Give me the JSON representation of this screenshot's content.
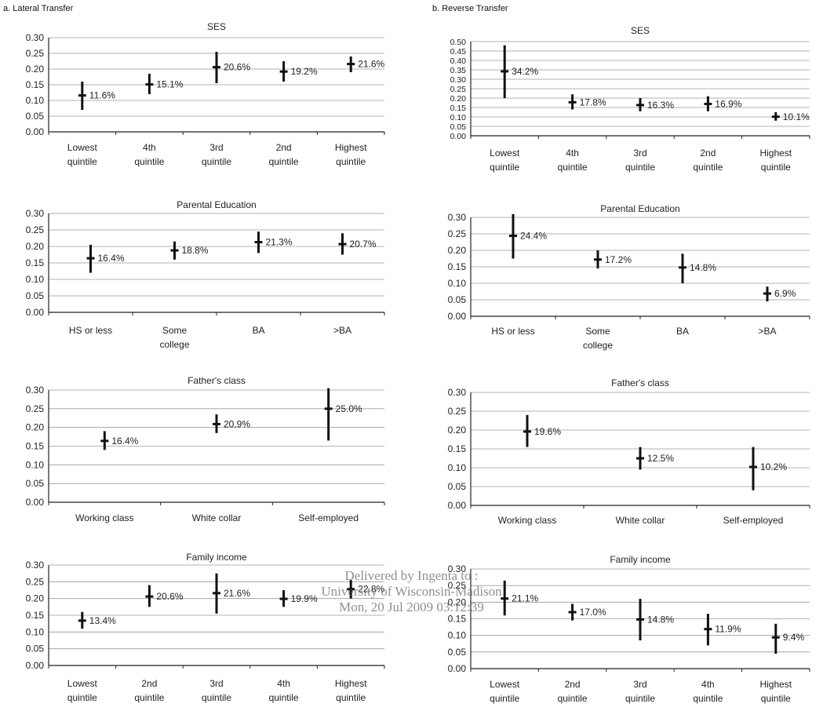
{
  "columns": {
    "left_title": "a. Lateral Transfer",
    "right_title": "b. Reverse Transfer"
  },
  "watermark": {
    "line1": "Delivered by Ingenta to :",
    "line2": "University of Wisconsin-Madison",
    "line3": "Mon, 20 Jul 2009 03:12:39"
  },
  "chart_data": [
    {
      "type": "scatter",
      "panel": "a. Lateral Transfer",
      "title": "SES",
      "ylim": [
        0,
        0.3
      ],
      "yticks": [
        "0.00",
        "0.05",
        "0.10",
        "0.15",
        "0.20",
        "0.25",
        "0.30"
      ],
      "categories": [
        [
          "Lowest",
          "quintile"
        ],
        [
          "4th",
          "quintile"
        ],
        [
          "3rd",
          "quintile"
        ],
        [
          "2nd",
          "quintile"
        ],
        [
          "Highest",
          "quintile"
        ]
      ],
      "values": [
        0.116,
        0.151,
        0.206,
        0.192,
        0.216
      ],
      "ci": [
        [
          0.07,
          0.16
        ],
        [
          0.12,
          0.185
        ],
        [
          0.155,
          0.255
        ],
        [
          0.16,
          0.225
        ],
        [
          0.19,
          0.24
        ]
      ],
      "labels": [
        "11.6%",
        "15.1%",
        "20.6%",
        "19.2%",
        "21.6%"
      ]
    },
    {
      "type": "scatter",
      "panel": "b. Reverse Transfer",
      "title": "SES",
      "ylim": [
        0,
        0.5
      ],
      "yticks": [
        "0.00",
        "0.05",
        "0.10",
        "0.15",
        "0.20",
        "0.25",
        "0.30",
        "0.35",
        "0.40",
        "0.45",
        "0.50"
      ],
      "categories": [
        [
          "Lowest",
          "quintile"
        ],
        [
          "4th",
          "quintile"
        ],
        [
          "3rd",
          "quintile"
        ],
        [
          "2nd",
          "quintile"
        ],
        [
          "Highest",
          "quintile"
        ]
      ],
      "values": [
        0.342,
        0.178,
        0.163,
        0.169,
        0.101
      ],
      "ci": [
        [
          0.2,
          0.48
        ],
        [
          0.14,
          0.22
        ],
        [
          0.13,
          0.2
        ],
        [
          0.13,
          0.21
        ],
        [
          0.08,
          0.125
        ]
      ],
      "labels": [
        "34.2%",
        "17.8%",
        "16.3%",
        "16.9%",
        "10.1%"
      ]
    },
    {
      "type": "scatter",
      "panel": "a. Lateral Transfer",
      "title": "Parental Education",
      "ylim": [
        0,
        0.3
      ],
      "yticks": [
        "0.00",
        "0.05",
        "0.10",
        "0.15",
        "0.20",
        "0.25",
        "0.30"
      ],
      "categories": [
        [
          "HS or less"
        ],
        [
          "Some",
          "college"
        ],
        [
          "BA"
        ],
        [
          ">BA"
        ]
      ],
      "values": [
        0.164,
        0.188,
        0.213,
        0.207
      ],
      "ci": [
        [
          0.12,
          0.205
        ],
        [
          0.16,
          0.215
        ],
        [
          0.18,
          0.245
        ],
        [
          0.175,
          0.24
        ]
      ],
      "labels": [
        "16.4%",
        "18.8%",
        "21.3%",
        "20.7%"
      ]
    },
    {
      "type": "scatter",
      "panel": "b. Reverse Transfer",
      "title": "Parental Education",
      "ylim": [
        0,
        0.3
      ],
      "yticks": [
        "0.00",
        "0.05",
        "0.10",
        "0.15",
        "0.20",
        "0.25",
        "0.30"
      ],
      "categories": [
        [
          "HS or less"
        ],
        [
          "Some",
          "college"
        ],
        [
          "BA"
        ],
        [
          ">BA"
        ]
      ],
      "values": [
        0.244,
        0.172,
        0.148,
        0.069
      ],
      "ci": [
        [
          0.175,
          0.31
        ],
        [
          0.145,
          0.2
        ],
        [
          0.1,
          0.19
        ],
        [
          0.045,
          0.09
        ]
      ],
      "labels": [
        "24.4%",
        "17.2%",
        "14.8%",
        "6.9%"
      ]
    },
    {
      "type": "scatter",
      "panel": "a. Lateral Transfer",
      "title": "Father's class",
      "ylim": [
        0,
        0.3
      ],
      "yticks": [
        "0.00",
        "0.05",
        "0.10",
        "0.15",
        "0.20",
        "0.25",
        "0.30"
      ],
      "categories": [
        [
          "Working class"
        ],
        [
          "White collar"
        ],
        [
          "Self-employed"
        ]
      ],
      "values": [
        0.164,
        0.209,
        0.25
      ],
      "ci": [
        [
          0.14,
          0.19
        ],
        [
          0.185,
          0.235
        ],
        [
          0.165,
          0.305
        ]
      ],
      "labels": [
        "16.4%",
        "20.9%",
        "25.0%"
      ]
    },
    {
      "type": "scatter",
      "panel": "b. Reverse Transfer",
      "title": "Father's class",
      "ylim": [
        0,
        0.3
      ],
      "yticks": [
        "0.00",
        "0.05",
        "0.10",
        "0.15",
        "0.20",
        "0.25",
        "0.30"
      ],
      "categories": [
        [
          "Working class"
        ],
        [
          "White collar"
        ],
        [
          "Self-employed"
        ]
      ],
      "values": [
        0.196,
        0.125,
        0.102
      ],
      "ci": [
        [
          0.155,
          0.24
        ],
        [
          0.095,
          0.155
        ],
        [
          0.04,
          0.155
        ]
      ],
      "labels": [
        "19.6%",
        "12.5%",
        "10.2%"
      ]
    },
    {
      "type": "scatter",
      "panel": "a. Lateral Transfer",
      "title": "Family income",
      "ylim": [
        0,
        0.3
      ],
      "yticks": [
        "0.00",
        "0.05",
        "0.10",
        "0.15",
        "0.20",
        "0.25",
        "0.30"
      ],
      "categories": [
        [
          "Lowest",
          "quintile"
        ],
        [
          "2nd",
          "quintile"
        ],
        [
          "3rd",
          "quintile"
        ],
        [
          "4th",
          "quintile"
        ],
        [
          "Highest",
          "quintile"
        ]
      ],
      "values": [
        0.134,
        0.206,
        0.216,
        0.199,
        0.228
      ],
      "ci": [
        [
          0.11,
          0.16
        ],
        [
          0.175,
          0.24
        ],
        [
          0.155,
          0.275
        ],
        [
          0.175,
          0.225
        ],
        [
          0.2,
          0.255
        ]
      ],
      "labels": [
        "13.4%",
        "20.6%",
        "21.6%",
        "19.9%",
        "22.8%"
      ]
    },
    {
      "type": "scatter",
      "panel": "b. Reverse Transfer",
      "title": "Family income",
      "ylim": [
        0,
        0.3
      ],
      "yticks": [
        "0.00",
        "0.05",
        "0.10",
        "0.15",
        "0.20",
        "0.25",
        "0.30"
      ],
      "categories": [
        [
          "Lowest",
          "quintile"
        ],
        [
          "2nd",
          "quintile"
        ],
        [
          "3rd",
          "quintile"
        ],
        [
          "4th",
          "quintile"
        ],
        [
          "Highest",
          "quintile"
        ]
      ],
      "values": [
        0.211,
        0.17,
        0.148,
        0.119,
        0.094
      ],
      "ci": [
        [
          0.16,
          0.265
        ],
        [
          0.145,
          0.195
        ],
        [
          0.085,
          0.21
        ],
        [
          0.07,
          0.165
        ],
        [
          0.045,
          0.135
        ]
      ],
      "labels": [
        "21.1%",
        "17.0%",
        "14.8%",
        "11.9%",
        "9.4%"
      ]
    }
  ]
}
